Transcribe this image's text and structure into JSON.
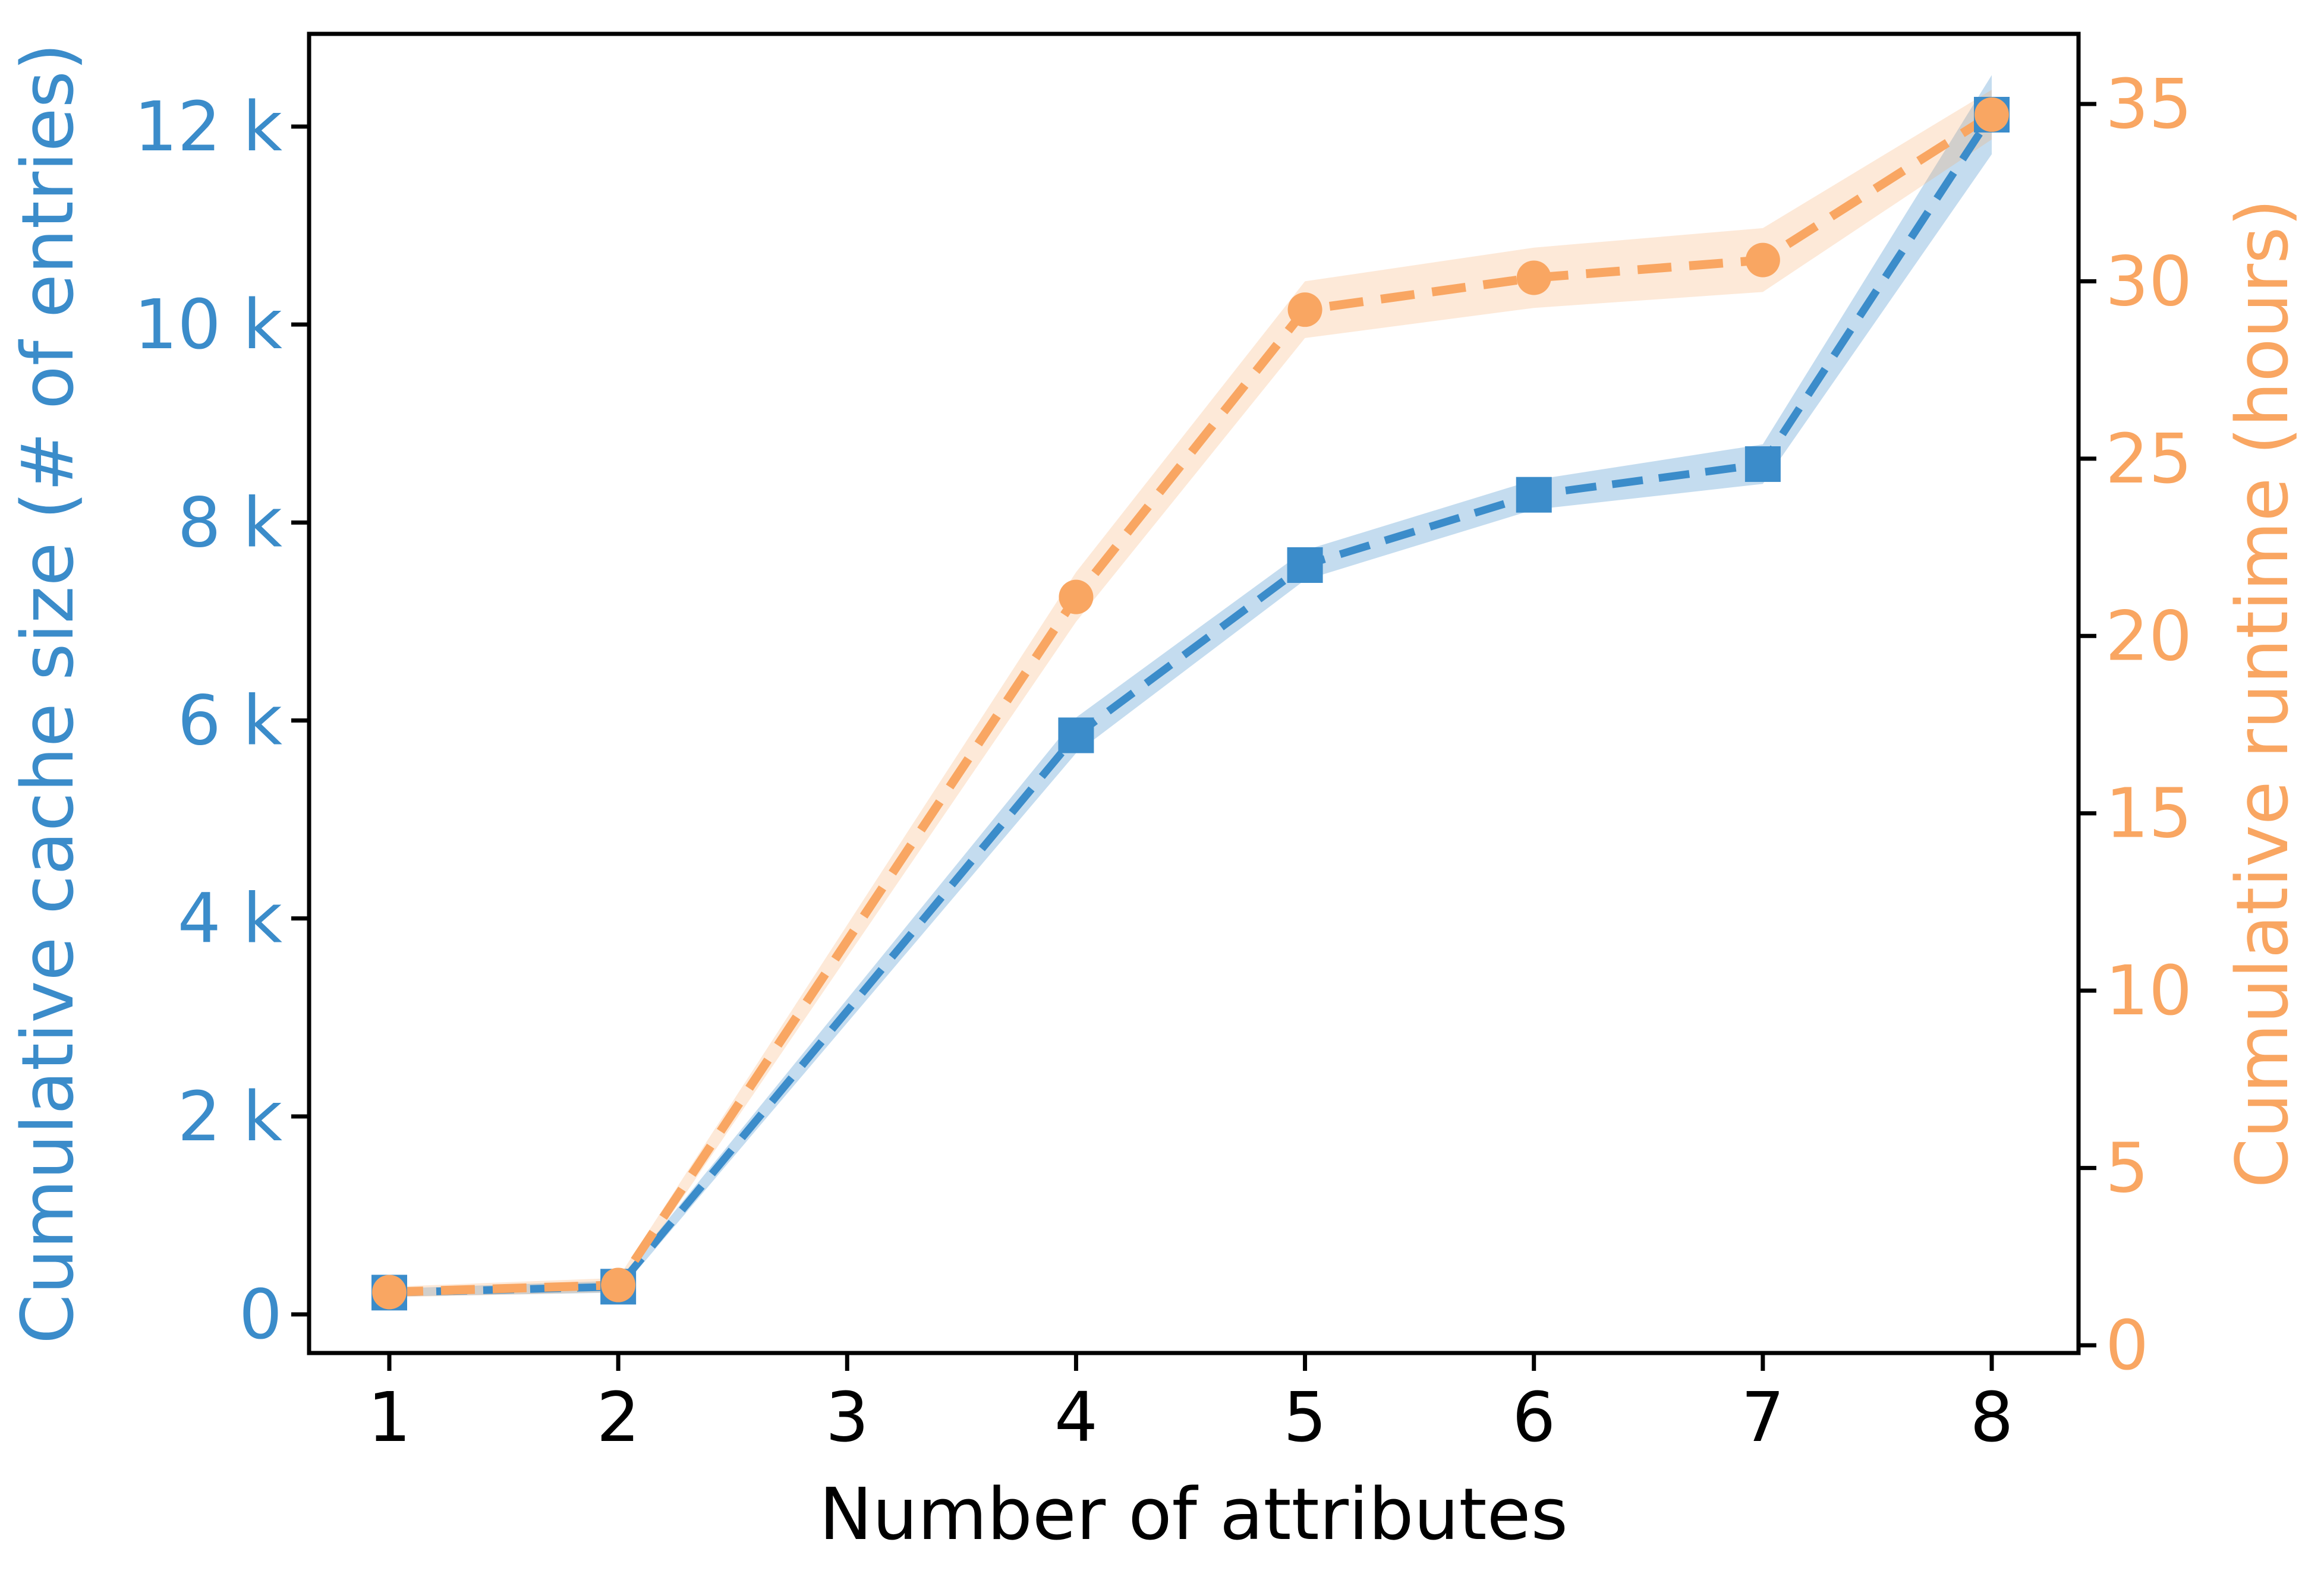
{
  "chart_data": {
    "type": "line",
    "title": "",
    "x": [
      1,
      2,
      4,
      5,
      6,
      7,
      8
    ],
    "series": [
      {
        "name": "Cumulative cache size",
        "axis": "left",
        "color": "#3b8cca",
        "band_color": "#3b8cca",
        "band_opacity": 0.3,
        "marker": "square",
        "values": [
          220,
          280,
          5850,
          7570,
          8280,
          8590,
          12120
        ],
        "band_halfwidth": [
          40,
          60,
          180,
          150,
          150,
          200,
          400
        ]
      },
      {
        "name": "Cumulative runtime",
        "axis": "right",
        "color": "#f9a662",
        "band_color": "#f9a662",
        "band_opacity": 0.25,
        "marker": "circle",
        "values": [
          1.5,
          1.7,
          21.1,
          29.2,
          30.1,
          30.6,
          34.7
        ],
        "band_halfwidth": [
          0.15,
          0.2,
          0.7,
          0.8,
          0.85,
          0.9,
          0.7
        ]
      }
    ],
    "xlabel": "Number of attributes",
    "x_tick_values": [
      1,
      2,
      3,
      4,
      5,
      6,
      7,
      8
    ],
    "x_tick_labels": [
      "1",
      "2",
      "3",
      "4",
      "5",
      "6",
      "7",
      "8"
    ],
    "xlim": [
      0.65,
      8.38
    ],
    "left_axis": {
      "label": "Cumulative cache size (# of entries)",
      "color": "#3b8cca",
      "tick_values": [
        0,
        2000,
        4000,
        6000,
        8000,
        10000,
        12000
      ],
      "tick_labels": [
        "0",
        "2 k",
        "4 k",
        "6 k",
        "8 k",
        "10 k",
        "12 k"
      ],
      "ylim": [
        -390,
        12940
      ]
    },
    "right_axis": {
      "label": "Cumulative runtime (hours)",
      "color": "#f9a662",
      "tick_values": [
        0,
        5,
        10,
        15,
        20,
        25,
        30,
        35
      ],
      "tick_labels": [
        "0",
        "5",
        "10",
        "15",
        "20",
        "25",
        "30",
        "35"
      ],
      "ylim": [
        -0.22,
        37.0
      ]
    },
    "grid": false,
    "legend": "none",
    "line_style": "dashed",
    "frame_color": "#000000"
  }
}
